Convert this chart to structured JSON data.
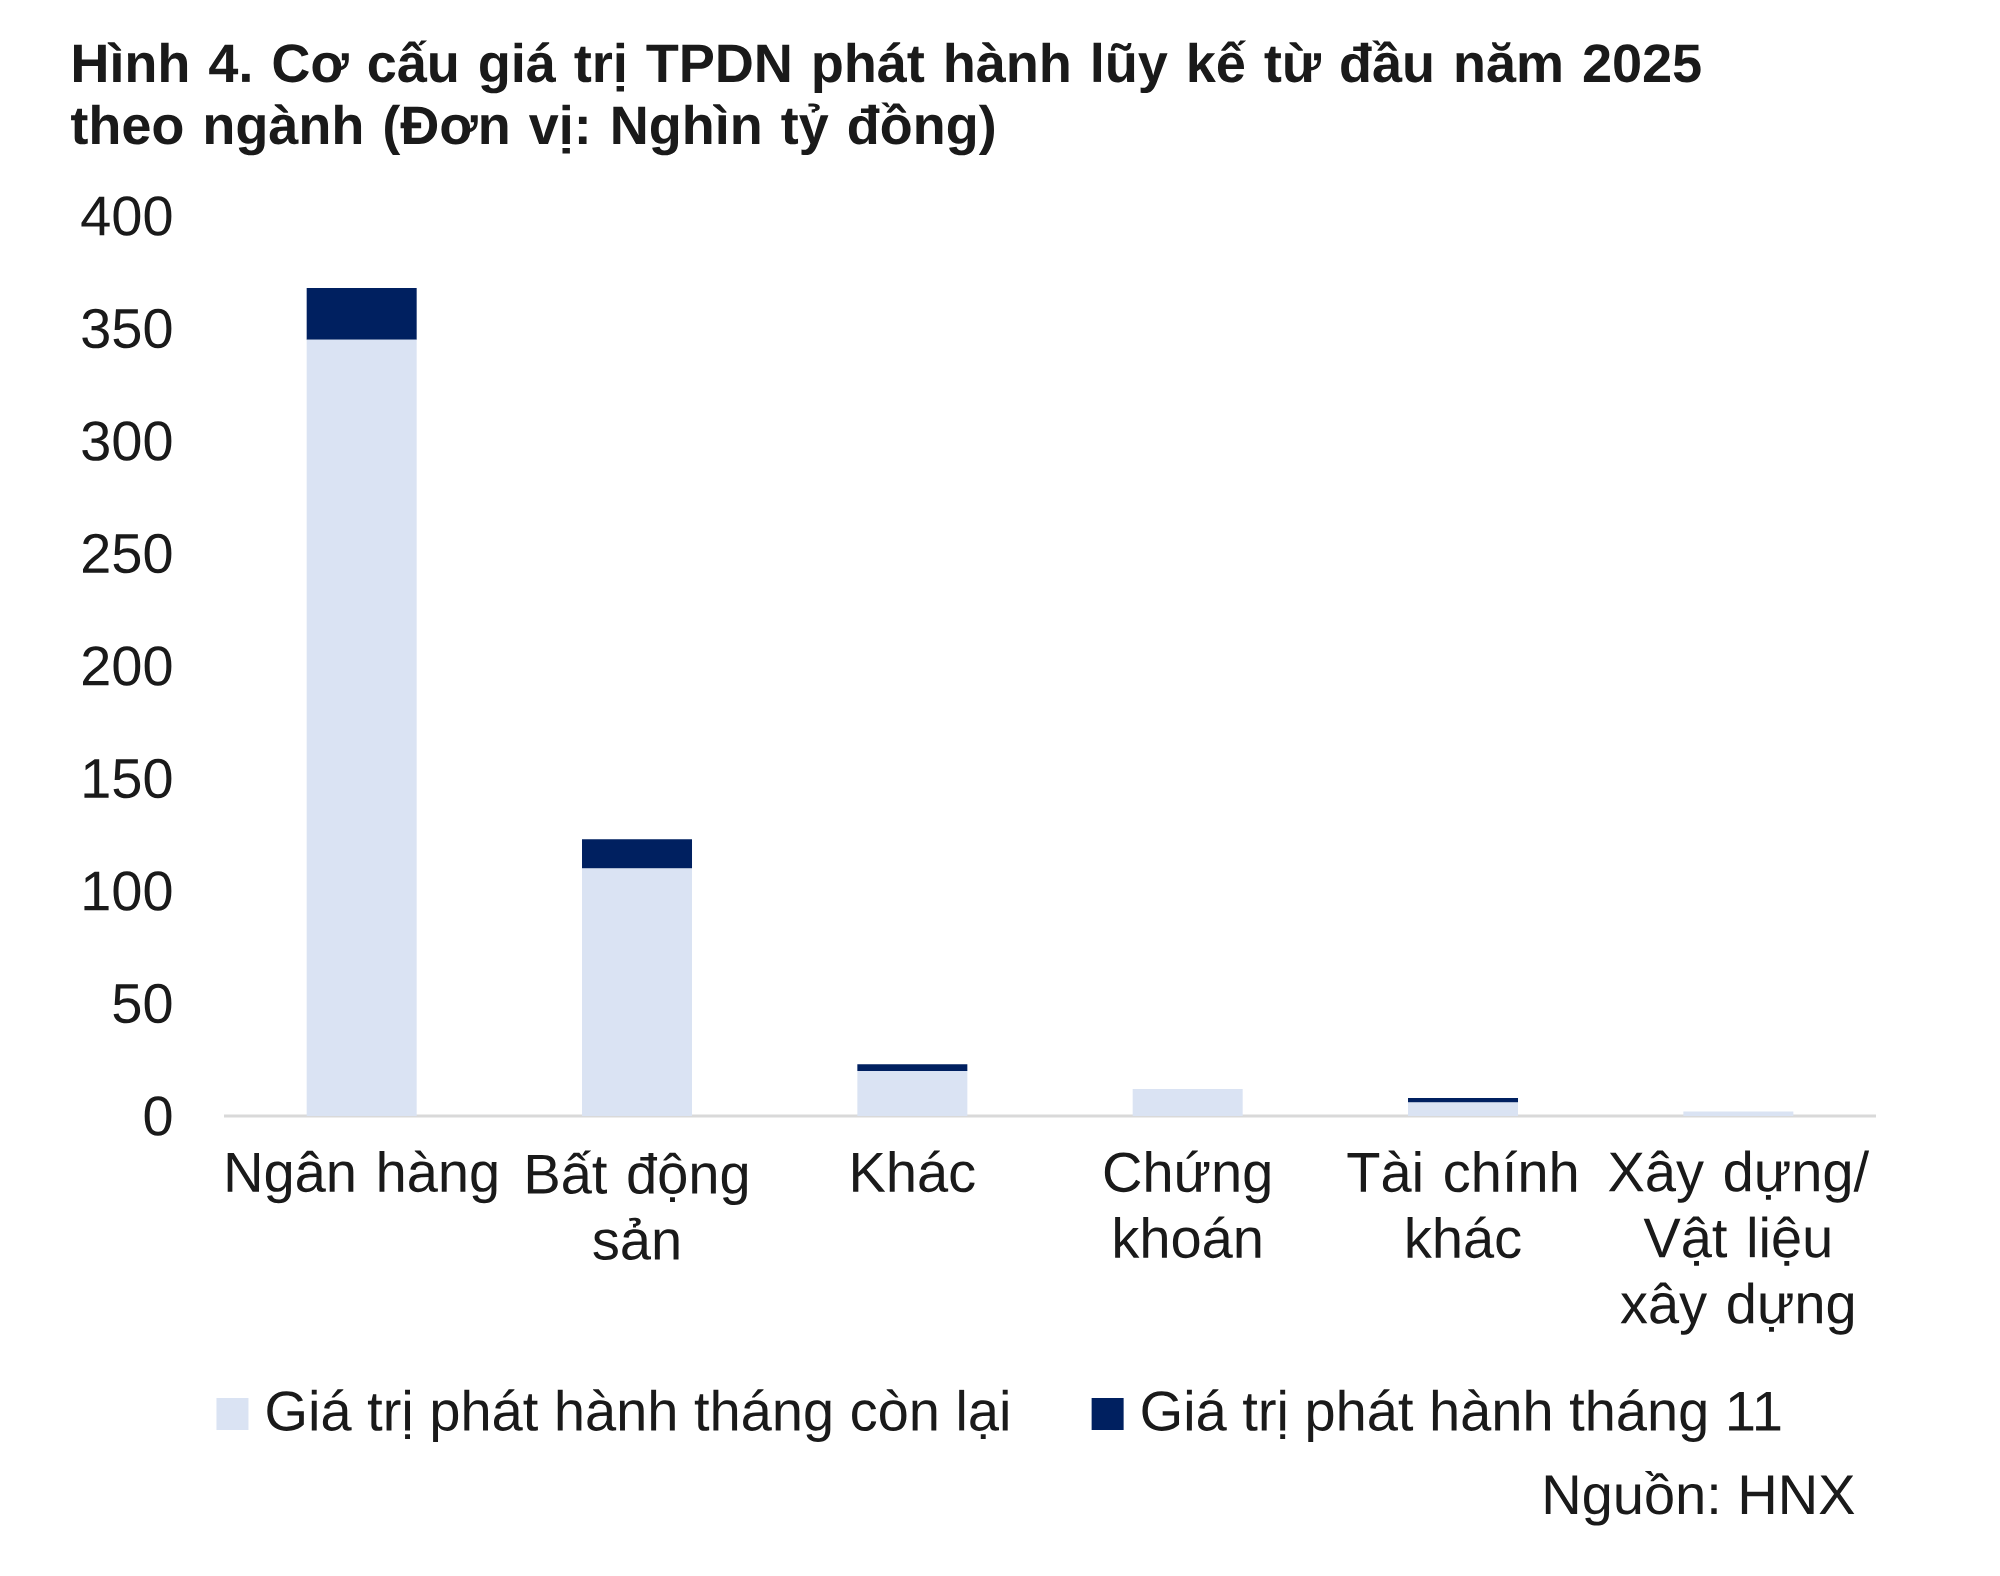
{
  "chart_data": {
    "type": "bar",
    "title": "Hình 4. Cơ cấu giá trị TPDN phát hành lũy kế từ đầu năm 2025 theo ngành (Đơn vị: Nghìn tỷ đồng)",
    "categories": [
      "Ngân hàng",
      "Bất động sản",
      "Khác",
      "Chứng khoán",
      "Tài chính khác",
      "Xây dựng/ Vật liệu xây dựng"
    ],
    "series": [
      {
        "name": "Giá trị phát hành tháng còn lại",
        "color": "#dae3f3",
        "values": [
          345,
          110,
          20,
          12,
          6,
          2
        ]
      },
      {
        "name": "Giá trị phát hành tháng 11",
        "color": "#002060",
        "values": [
          23,
          13,
          3,
          0,
          2,
          0
        ]
      }
    ],
    "stacked": true,
    "ylim": [
      0,
      400
    ],
    "yticks": [
      0,
      50,
      100,
      150,
      200,
      250,
      300,
      350,
      400
    ],
    "legend": "bottom",
    "annotations": [
      "Nguồn: HNX"
    ]
  }
}
